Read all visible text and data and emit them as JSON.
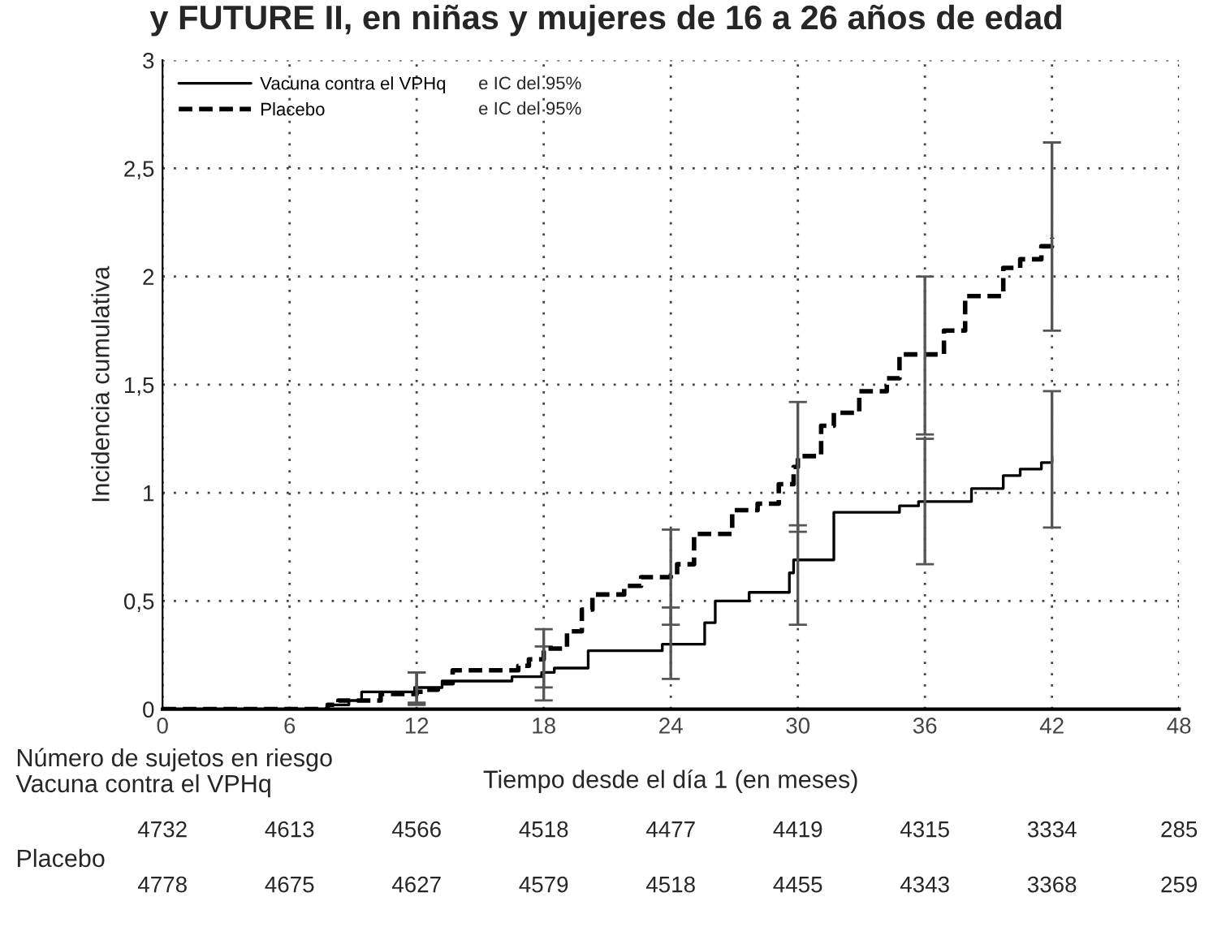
{
  "chart_data": {
    "type": "step",
    "title": "y FUTURE II, en niñas y mujeres de 16 a 26 años de edad",
    "xlabel": "Tiempo desde el día 1 (en meses)",
    "ylabel": "Incidencia cumulativa",
    "xlim": [
      0,
      48
    ],
    "xticks": [
      0,
      6,
      12,
      18,
      24,
      30,
      36,
      42,
      48
    ],
    "ylim": [
      0,
      3
    ],
    "yticks": [
      {
        "value": 0,
        "label": "0"
      },
      {
        "value": 0.5,
        "label": "0,5"
      },
      {
        "value": 1,
        "label": "1"
      },
      {
        "value": 1.5,
        "label": "1,5"
      },
      {
        "value": 2,
        "label": "2"
      },
      {
        "value": 2.5,
        "label": "2,5"
      },
      {
        "value": 3,
        "label": "3"
      }
    ],
    "grid": true,
    "legend": "top left",
    "series": [
      {
        "name": "Vacuna contra el VPHq",
        "color": "#000000",
        "line_style": "solid",
        "x": [
          0,
          7,
          7.8,
          8.8,
          9.4,
          11.9,
          12,
          13.2,
          16.5,
          17.9,
          18,
          18.5,
          20.1,
          23.6,
          24,
          25.6,
          26.1,
          27.7,
          29.6,
          29.8,
          30,
          31.7,
          34.8,
          35.7,
          36,
          38.2,
          39.7,
          40.5,
          41.5,
          42
        ],
        "values": [
          0,
          0,
          0.02,
          0.04,
          0.08,
          0.1,
          0.1,
          0.13,
          0.15,
          0.17,
          0.17,
          0.19,
          0.27,
          0.3,
          0.3,
          0.4,
          0.5,
          0.54,
          0.63,
          0.69,
          0.69,
          0.91,
          0.94,
          0.96,
          0.96,
          1.02,
          1.08,
          1.11,
          1.14,
          1.17
        ],
        "errors": [
          null,
          null,
          null,
          null,
          null,
          null,
          [
            0.03,
            0.17
          ],
          null,
          null,
          null,
          [
            0.04,
            0.29
          ],
          null,
          null,
          null,
          [
            0.14,
            0.47
          ],
          null,
          null,
          null,
          null,
          null,
          [
            0.39,
            0.85
          ],
          null,
          null,
          null,
          [
            0.67,
            1.25
          ],
          null,
          null,
          null,
          null,
          [
            0.84,
            1.47
          ]
        ]
      },
      {
        "name": "Placebo",
        "color": "#000000",
        "line_style": "dashed",
        "x": [
          0,
          7.5,
          7.8,
          8.3,
          10.3,
          12,
          12.3,
          13,
          13.7,
          16.8,
          17.3,
          18,
          19.1,
          19.8,
          20.3,
          21.8,
          22.6,
          24,
          24.3,
          25.1,
          26.9,
          28.1,
          29.1,
          29.8,
          30,
          31.1,
          31.7,
          32.9,
          34.2,
          34.8,
          36,
          36.9,
          37.9,
          39.7,
          40.5,
          41.5,
          42
        ],
        "values": [
          0,
          0,
          0.02,
          0.04,
          0.07,
          0.08,
          0.09,
          0.12,
          0.18,
          0.2,
          0.23,
          0.28,
          0.36,
          0.46,
          0.53,
          0.57,
          0.61,
          0.62,
          0.67,
          0.81,
          0.92,
          0.95,
          1.04,
          1.12,
          1.17,
          1.31,
          1.37,
          1.47,
          1.53,
          1.64,
          1.64,
          1.75,
          1.91,
          2.04,
          2.08,
          2.14,
          2.18
        ],
        "errors": [
          null,
          null,
          null,
          null,
          null,
          [
            0.02,
            0.17
          ],
          null,
          null,
          null,
          null,
          null,
          [
            0.1,
            0.37
          ],
          null,
          null,
          null,
          null,
          null,
          [
            0.39,
            0.83
          ],
          null,
          null,
          null,
          null,
          null,
          null,
          [
            0.82,
            1.42
          ],
          null,
          null,
          null,
          null,
          null,
          [
            1.27,
            2.0
          ],
          null,
          null,
          null,
          null,
          null,
          [
            1.75,
            2.62
          ]
        ]
      }
    ],
    "annotations": [
      "Número de sujetos en riesgo",
      "Vacuna contra el VPHq",
      "Placebo",
      "e IC del 95%",
      "e IC del 95%",
      "4732",
      "4613",
      "4566",
      "4518",
      "4477",
      "4419",
      "4315",
      "3334",
      "285",
      "4778",
      "4675",
      "4627",
      "4579",
      "4518",
      "4455",
      "4343",
      "3368",
      "259"
    ]
  }
}
